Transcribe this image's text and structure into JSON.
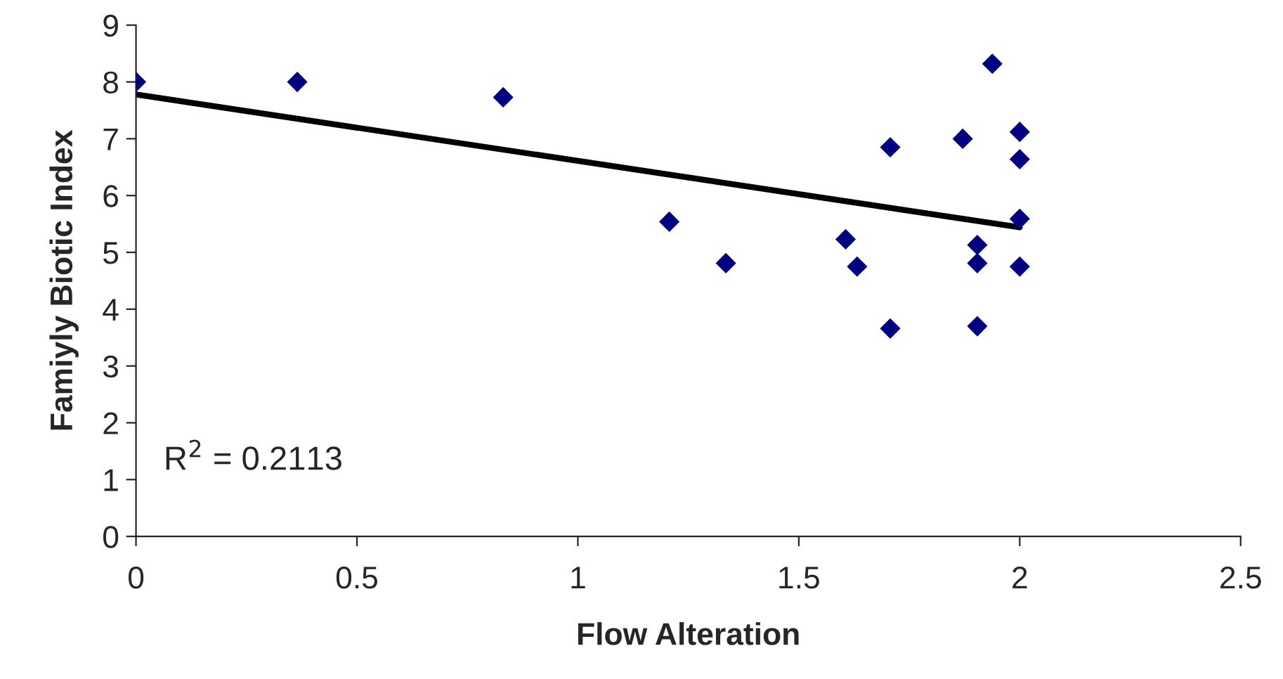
{
  "chart_data": {
    "type": "scatter",
    "xlabel": "Flow Alteration",
    "ylabel": "Famiyly Biotic Index",
    "annotations": [
      "R$^{2}$ = 0.2113"
    ],
    "series": [
      {
        "color": "#000080",
        "marker": "diamond",
        "x": [
          0,
          0.365,
          0.831,
          1.207,
          1.335,
          1.606,
          1.632,
          1.707,
          1.707,
          1.871,
          1.938,
          1.904,
          1.904,
          1.904,
          2.0,
          2.0,
          2.0,
          2.0
        ],
        "values": [
          8.0,
          8.0,
          7.73,
          5.54,
          4.81,
          5.23,
          4.75,
          6.85,
          3.66,
          7.0,
          8.32,
          5.13,
          4.81,
          3.7,
          7.12,
          6.64,
          5.59,
          4.75
        ]
      },
      {
        "type": "line",
        "color": "#000000",
        "marker": "none",
        "x": [
          0,
          2
        ],
        "values": [
          7.78,
          5.44
        ]
      }
    ],
    "xlim": [
      0,
      2.5
    ],
    "xticks": [
      0,
      0.5,
      1,
      1.5,
      2,
      2.5
    ],
    "ylim": [
      0,
      9
    ],
    "yticks": [
      0,
      1,
      2,
      3,
      4,
      5,
      6,
      7,
      8,
      9
    ],
    "grid": false,
    "legend": false
  }
}
